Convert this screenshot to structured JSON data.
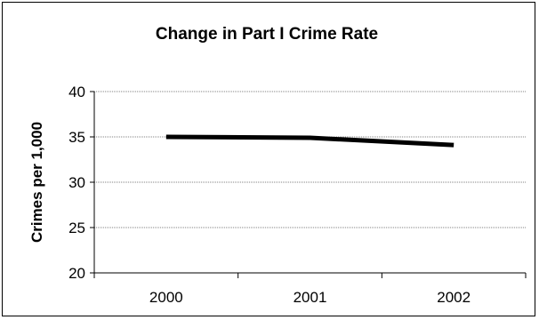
{
  "chart_data": {
    "type": "line",
    "title": "Change in Part I Crime Rate",
    "xlabel": "",
    "ylabel": "Crimes per 1,000",
    "categories": [
      "2000",
      "2001",
      "2002"
    ],
    "series": [
      {
        "values": [
          35.0,
          34.9,
          34.1
        ]
      }
    ],
    "ylim": [
      20,
      40
    ],
    "yticks": [
      20,
      25,
      30,
      35,
      40
    ],
    "grid": true,
    "legend": "none",
    "line_color": "#000000",
    "grid_color": "#808080"
  }
}
